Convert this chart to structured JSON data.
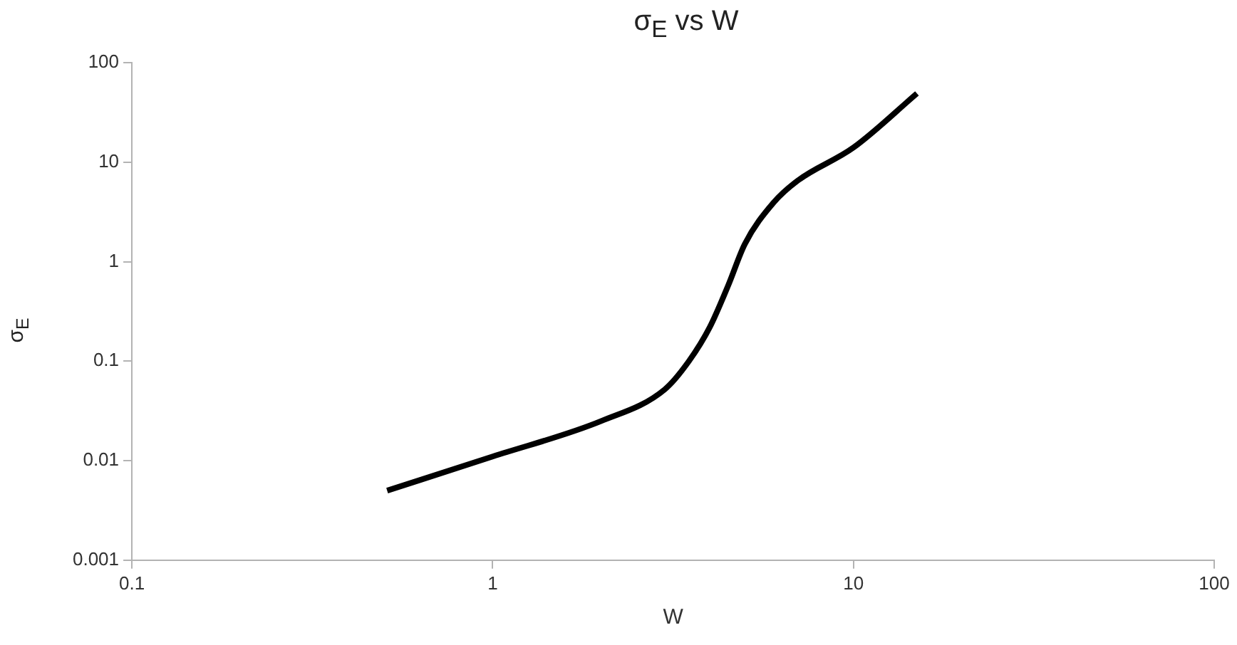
{
  "chart_data": {
    "type": "line",
    "title": "σ$_{E}$ vs W",
    "xlabel": "W",
    "ylabel": "σ$_{E}$",
    "x": [
      0.51,
      1,
      2,
      3,
      3.5,
      4,
      4.5,
      5,
      6,
      7,
      10,
      15
    ],
    "series": [
      {
        "color": "#000000",
        "values": [
          0.005,
          0.011,
          0.025,
          0.052,
          0.1,
          0.22,
          0.58,
          1.5,
          3.9,
          6.5,
          14,
          49
        ]
      }
    ],
    "log": "xy",
    "xlim": [
      0.1,
      100
    ],
    "xticks": [
      0.1,
      1,
      10,
      100
    ],
    "ylim": [
      0.001,
      100
    ],
    "yticks": [
      0.001,
      0.01,
      0.1,
      1,
      10,
      100
    ],
    "grid": false,
    "legend": false,
    "marker": "none",
    "line_style": "solid"
  }
}
